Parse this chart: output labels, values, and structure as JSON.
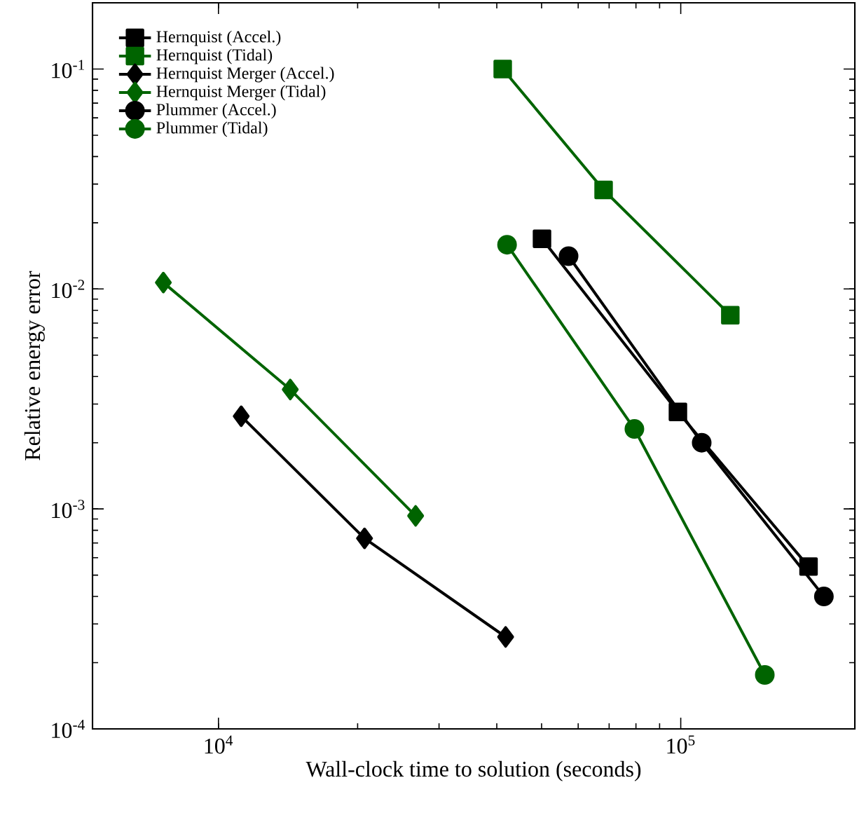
{
  "chart_data": {
    "type": "line",
    "xlabel": "Wall-clock time to solution (seconds)",
    "ylabel": "Relative energy error",
    "log": "xy",
    "xlim": [
      5340,
      238000
    ],
    "ylim": [
      0.0001,
      0.2
    ],
    "xticks": [
      {
        "value": 10000,
        "label": "10$^{4}$"
      },
      {
        "value": 100000,
        "label": "10$^{5}$"
      }
    ],
    "yticks": [
      {
        "value": 0.0001,
        "label": "10$^{-4}$"
      },
      {
        "value": 0.001,
        "label": "10$^{-3}$"
      },
      {
        "value": 0.01,
        "label": "10$^{-2}$"
      },
      {
        "value": 0.1,
        "label": "10$^{-1}$"
      }
    ],
    "legend": "top left",
    "grid": false,
    "line_style": "solid",
    "series": [
      {
        "name": "Hernquist (Accel.)",
        "color": "#000000",
        "marker": "square",
        "x": [
          50100,
          98600,
          189000
        ],
        "values": [
          0.0169,
          0.00276,
          0.000547
        ]
      },
      {
        "name": "Hernquist (Tidal)",
        "color": "#006400",
        "marker": "square",
        "x": [
          41200,
          68100,
          128000
        ],
        "values": [
          0.1,
          0.0282,
          0.0076
        ]
      },
      {
        "name": "Hernquist Merger (Accel.)",
        "color": "#000000",
        "marker": "diamond",
        "x": [
          11200,
          20700,
          41800
        ],
        "values": [
          0.00264,
          0.000735,
          0.000262
        ]
      },
      {
        "name": "Hernquist Merger (Tidal)",
        "color": "#006400",
        "marker": "diamond",
        "x": [
          7600,
          14300,
          26700
        ],
        "values": [
          0.0107,
          0.00349,
          0.00093
        ]
      },
      {
        "name": "Plummer (Accel.)",
        "color": "#000000",
        "marker": "circle",
        "x": [
          57200,
          111000,
          204000
        ],
        "values": [
          0.0141,
          0.002,
          0.0004
        ]
      },
      {
        "name": "Plummer (Tidal)",
        "color": "#006400",
        "marker": "circle",
        "x": [
          42100,
          79400,
          152000
        ],
        "values": [
          0.0159,
          0.00231,
          0.000176
        ]
      }
    ]
  }
}
